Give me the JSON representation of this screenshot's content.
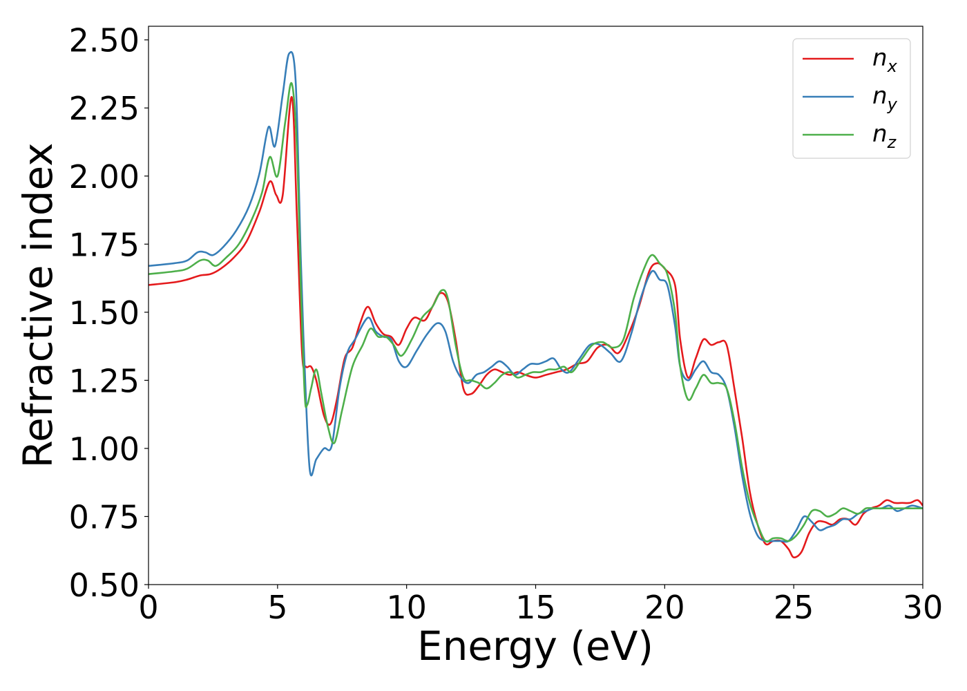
{
  "chart_data": {
    "type": "line",
    "title": "",
    "xlabel": "Energy (eV)",
    "ylabel": "Refractive index",
    "xlim": [
      0,
      30
    ],
    "ylim": [
      0.5,
      2.55
    ],
    "xticks": [
      0,
      5,
      10,
      15,
      20,
      25,
      30
    ],
    "xtick_labels": [
      "0",
      "5",
      "10",
      "15",
      "20",
      "25",
      "30"
    ],
    "yticks": [
      0.5,
      0.75,
      1.0,
      1.25,
      1.5,
      1.75,
      2.0,
      2.25,
      2.5
    ],
    "ytick_labels": [
      "0.50",
      "0.75",
      "1.00",
      "1.25",
      "1.50",
      "1.75",
      "2.00",
      "2.25",
      "2.50"
    ],
    "grid": false,
    "legend_position": "top-right",
    "series": [
      {
        "name": "n_x",
        "legend_base": "n",
        "legend_sub": "x",
        "color": "#e41a1c",
        "x": [
          0,
          1,
          1.5,
          2,
          2.4,
          2.8,
          3.3,
          3.8,
          4.3,
          4.7,
          4.95,
          5.2,
          5.55,
          5.75,
          5.95,
          6.1,
          6.3,
          6.5,
          6.8,
          7.05,
          7.3,
          7.6,
          7.9,
          8.2,
          8.5,
          8.8,
          9.1,
          9.4,
          9.7,
          10.0,
          10.3,
          10.7,
          11.0,
          11.3,
          11.6,
          11.9,
          12.2,
          12.5,
          12.8,
          13.1,
          13.4,
          13.7,
          14.0,
          14.3,
          14.6,
          15.0,
          15.4,
          15.8,
          16.2,
          16.6,
          17.0,
          17.4,
          17.8,
          18.2,
          18.6,
          19.0,
          19.4,
          19.7,
          20.0,
          20.4,
          20.6,
          20.9,
          21.2,
          21.5,
          21.8,
          22.1,
          22.4,
          22.7,
          23.0,
          23.3,
          23.6,
          23.9,
          24.2,
          24.5,
          24.8,
          25.0,
          25.3,
          25.6,
          25.9,
          26.2,
          26.5,
          26.8,
          27.1,
          27.4,
          27.7,
          28.0,
          28.3,
          28.6,
          28.9,
          29.2,
          29.5,
          29.8,
          30.0
        ],
        "y": [
          1.6,
          1.61,
          1.62,
          1.635,
          1.64,
          1.66,
          1.7,
          1.76,
          1.87,
          1.98,
          1.93,
          1.93,
          2.29,
          1.85,
          1.35,
          1.3,
          1.3,
          1.25,
          1.12,
          1.09,
          1.18,
          1.33,
          1.37,
          1.46,
          1.52,
          1.46,
          1.42,
          1.41,
          1.38,
          1.44,
          1.48,
          1.47,
          1.52,
          1.57,
          1.54,
          1.4,
          1.22,
          1.2,
          1.23,
          1.27,
          1.29,
          1.28,
          1.27,
          1.28,
          1.27,
          1.26,
          1.27,
          1.28,
          1.29,
          1.31,
          1.32,
          1.37,
          1.38,
          1.35,
          1.42,
          1.52,
          1.65,
          1.68,
          1.66,
          1.6,
          1.4,
          1.26,
          1.33,
          1.4,
          1.38,
          1.39,
          1.38,
          1.22,
          1.04,
          0.84,
          0.72,
          0.65,
          0.66,
          0.66,
          0.63,
          0.6,
          0.62,
          0.69,
          0.73,
          0.73,
          0.72,
          0.74,
          0.74,
          0.72,
          0.76,
          0.78,
          0.79,
          0.81,
          0.8,
          0.8,
          0.8,
          0.81,
          0.79
        ]
      },
      {
        "name": "n_y",
        "legend_base": "n",
        "legend_sub": "y",
        "color": "#377eb8",
        "x": [
          0,
          1,
          1.5,
          1.9,
          2.2,
          2.5,
          2.9,
          3.4,
          3.9,
          4.3,
          4.65,
          4.9,
          5.2,
          5.45,
          5.7,
          5.9,
          6.05,
          6.25,
          6.5,
          6.8,
          7.1,
          7.4,
          7.7,
          8.0,
          8.5,
          8.8,
          9.1,
          9.4,
          9.7,
          10.0,
          10.4,
          10.8,
          11.2,
          11.5,
          11.8,
          12.1,
          12.4,
          12.7,
          13.0,
          13.3,
          13.6,
          13.9,
          14.2,
          14.5,
          14.8,
          15.1,
          15.4,
          15.7,
          16.0,
          16.3,
          16.7,
          17.1,
          17.5,
          17.9,
          18.3,
          18.7,
          19.1,
          19.5,
          19.8,
          20.1,
          20.4,
          20.6,
          20.9,
          21.2,
          21.5,
          21.8,
          22.1,
          22.4,
          22.7,
          23.0,
          23.3,
          23.6,
          23.9,
          24.2,
          24.5,
          24.8,
          25.1,
          25.4,
          25.7,
          26.0,
          26.3,
          26.6,
          26.9,
          27.2,
          27.5,
          27.8,
          28.1,
          28.4,
          28.7,
          29.0,
          29.3,
          29.6,
          30.0
        ],
        "y": [
          1.67,
          1.68,
          1.69,
          1.72,
          1.72,
          1.71,
          1.74,
          1.8,
          1.89,
          2.01,
          2.18,
          2.11,
          2.3,
          2.45,
          2.35,
          1.7,
          1.3,
          0.92,
          0.96,
          1.0,
          1.01,
          1.22,
          1.35,
          1.4,
          1.48,
          1.43,
          1.41,
          1.4,
          1.32,
          1.3,
          1.36,
          1.42,
          1.46,
          1.43,
          1.32,
          1.26,
          1.24,
          1.27,
          1.28,
          1.3,
          1.32,
          1.3,
          1.27,
          1.29,
          1.31,
          1.31,
          1.32,
          1.33,
          1.29,
          1.28,
          1.33,
          1.38,
          1.38,
          1.35,
          1.32,
          1.42,
          1.56,
          1.65,
          1.62,
          1.6,
          1.45,
          1.3,
          1.25,
          1.29,
          1.32,
          1.28,
          1.27,
          1.22,
          1.08,
          0.9,
          0.76,
          0.68,
          0.66,
          0.66,
          0.66,
          0.66,
          0.7,
          0.75,
          0.73,
          0.7,
          0.71,
          0.72,
          0.74,
          0.74,
          0.76,
          0.77,
          0.78,
          0.78,
          0.79,
          0.77,
          0.78,
          0.79,
          0.78
        ]
      },
      {
        "name": "n_z",
        "legend_base": "n",
        "legend_sub": "z",
        "color": "#4daf4a",
        "x": [
          0,
          1,
          1.5,
          2,
          2.3,
          2.6,
          3.0,
          3.5,
          4.0,
          4.4,
          4.7,
          5.0,
          5.3,
          5.55,
          5.75,
          5.9,
          6.05,
          6.15,
          6.3,
          6.5,
          6.7,
          6.95,
          7.2,
          7.5,
          7.9,
          8.3,
          8.6,
          8.9,
          9.2,
          9.5,
          9.8,
          10.2,
          10.6,
          11.0,
          11.35,
          11.6,
          11.9,
          12.2,
          12.5,
          12.8,
          13.1,
          13.4,
          13.7,
          14.0,
          14.3,
          14.6,
          14.9,
          15.2,
          15.5,
          15.8,
          16.1,
          16.4,
          16.8,
          17.2,
          17.6,
          18.0,
          18.4,
          18.8,
          19.2,
          19.5,
          19.8,
          20.1,
          20.4,
          20.6,
          20.9,
          21.2,
          21.5,
          21.8,
          22.1,
          22.4,
          22.7,
          23.0,
          23.3,
          23.6,
          23.9,
          24.2,
          24.5,
          24.8,
          25.1,
          25.4,
          25.7,
          26.0,
          26.3,
          26.6,
          26.9,
          27.2,
          27.5,
          27.8,
          28.1,
          28.4,
          28.7,
          29.0,
          29.3,
          29.6,
          30.0
        ],
        "y": [
          1.64,
          1.65,
          1.66,
          1.69,
          1.69,
          1.67,
          1.7,
          1.75,
          1.84,
          1.94,
          2.07,
          2.0,
          2.2,
          2.34,
          2.1,
          1.6,
          1.2,
          1.16,
          1.22,
          1.29,
          1.2,
          1.08,
          1.02,
          1.14,
          1.3,
          1.38,
          1.44,
          1.41,
          1.41,
          1.38,
          1.34,
          1.4,
          1.48,
          1.52,
          1.58,
          1.55,
          1.38,
          1.26,
          1.25,
          1.24,
          1.22,
          1.24,
          1.27,
          1.28,
          1.26,
          1.27,
          1.28,
          1.28,
          1.29,
          1.29,
          1.3,
          1.28,
          1.33,
          1.38,
          1.39,
          1.37,
          1.4,
          1.55,
          1.66,
          1.71,
          1.68,
          1.64,
          1.5,
          1.3,
          1.18,
          1.22,
          1.27,
          1.24,
          1.24,
          1.22,
          1.1,
          0.93,
          0.8,
          0.72,
          0.66,
          0.67,
          0.67,
          0.66,
          0.68,
          0.72,
          0.77,
          0.77,
          0.75,
          0.76,
          0.78,
          0.77,
          0.76,
          0.78,
          0.78,
          0.78,
          0.78,
          0.78,
          0.78,
          0.78,
          0.78
        ]
      }
    ]
  }
}
